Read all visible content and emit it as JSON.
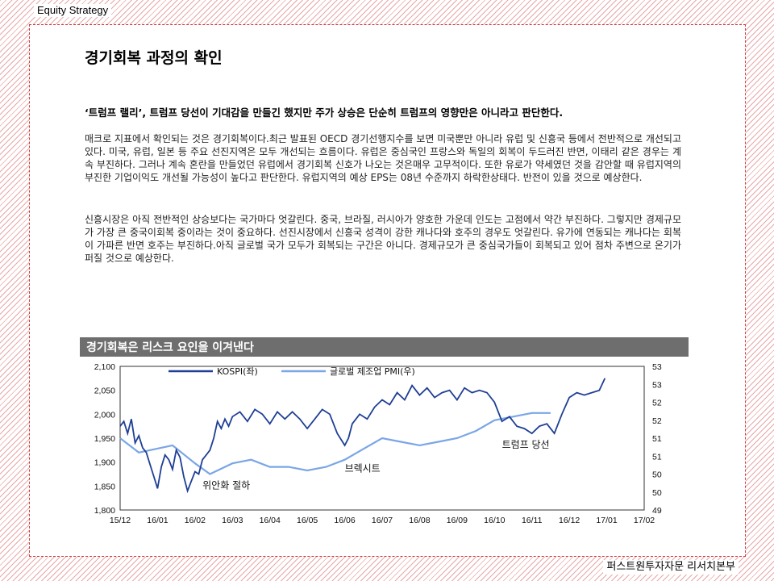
{
  "header": {
    "section_label": "Equity Strategy"
  },
  "page": {
    "title": "경기회복 과정의 확인"
  },
  "lead": "‘트럼프 랠리’, 트럼프 당선이 기대감을 만들긴 했지만 주가 상승은 단순히 트럼프의 영향만은 아니라고 판단한다.",
  "paragraphs": [
    "매크로 지표에서 확인되는 것은 경기회복이다.최근 발표된 OECD 경기선행지수를 보면 미국뿐만 아니라 유럽 및 신흥국 등에서 전반적으로 개선되고 있다. 미국, 유럽, 일본 등 주요 선진지역은 모두 개선되는 흐름이다. 유럽은 중심국인 프랑스와 독일의 회복이 두드러진 반면, 이태리 같은 경우는 계속 부진하다. 그러나 계속 혼란을 만들었던 유럽에서 경기회복 신호가 나오는 것은매우 고무적이다. 또한 유로가 약세였던 것을 감안할 때 유럽지역의 부진한 기업이익도 개선될 가능성이 높다고 판단한다. 유럽지역의 예상 EPS는 08년 수준까지 하락한상태다. 반전이 있을 것으로 예상한다.",
    "신흥시장은 아직 전반적인 상승보다는 국가마다 엇갈린다. 중국, 브라질, 러시아가 양호한 가운데 인도는 고점에서 약간 부진하다. 그렇지만 경제규모가 가장 큰 중국이회복 중이라는 것이 중요하다. 선진시장에서 신흥국 성격이 강한 캐나다와 호주의 경우도 엇갈린다. 유가에 연동되는 캐나다는 회복이 가파른 반면 호주는 부진하다.아직 글로벌 국가 모두가 회복되는 구간은 아니다. 경제규모가 큰 중심국가들이 회복되고 있어 점차 주변으로 온기가 퍼질 것으로 예상한다."
  ],
  "footer": {
    "source_label": "퍼스트원투자자문 리서치본부"
  },
  "colors": {
    "kospi": "#1f3f95",
    "pmi": "#7aa6e6",
    "title_bar": "#6e6e6e",
    "border_stripes": "#e8a7a7"
  },
  "chart_data": {
    "type": "line",
    "title": "경기회복은 리스크 요인을 이겨낸다",
    "x_ticks": [
      "15/12",
      "16/01",
      "16/02",
      "16/03",
      "16/04",
      "16/05",
      "16/06",
      "16/07",
      "16/08",
      "16/09",
      "16/10",
      "16/11",
      "16/12",
      "17/01",
      "17/02"
    ],
    "y_left": {
      "min": 1800,
      "max": 2100,
      "ticks": [
        "1,800",
        "1,850",
        "1,900",
        "1,950",
        "2,000",
        "2,050",
        "2,100"
      ]
    },
    "y_right": {
      "min": 49,
      "max": 53,
      "ticks": [
        "49",
        "50",
        "50",
        "51",
        "51",
        "52",
        "52",
        "53",
        "53"
      ]
    },
    "series": [
      {
        "name": "KOSPI(좌)",
        "axis": "left",
        "x": [
          0,
          0.1,
          0.2,
          0.3,
          0.4,
          0.5,
          0.6,
          0.7,
          0.8,
          0.9,
          1.0,
          1.1,
          1.2,
          1.3,
          1.4,
          1.5,
          1.6,
          1.7,
          1.8,
          1.9,
          2.0,
          2.1,
          2.2,
          2.3,
          2.4,
          2.5,
          2.6,
          2.7,
          2.8,
          2.9,
          3.0,
          3.2,
          3.4,
          3.6,
          3.8,
          4.0,
          4.2,
          4.4,
          4.6,
          4.8,
          5.0,
          5.2,
          5.4,
          5.6,
          5.8,
          6.0,
          6.1,
          6.2,
          6.4,
          6.6,
          6.8,
          7.0,
          7.2,
          7.4,
          7.6,
          7.8,
          8.0,
          8.2,
          8.4,
          8.6,
          8.8,
          9.0,
          9.2,
          9.4,
          9.6,
          9.8,
          10.0,
          10.2,
          10.4,
          10.6,
          10.8,
          11.0,
          11.2,
          11.4,
          11.6,
          11.8,
          12.0,
          12.2,
          12.4,
          12.6,
          12.8,
          12.95
        ],
        "values": [
          1975,
          1985,
          1960,
          1990,
          1940,
          1955,
          1930,
          1920,
          1895,
          1870,
          1845,
          1890,
          1915,
          1905,
          1885,
          1925,
          1910,
          1870,
          1840,
          1860,
          1880,
          1875,
          1905,
          1915,
          1925,
          1950,
          1985,
          1970,
          1990,
          1975,
          1995,
          2005,
          1985,
          2010,
          2000,
          1980,
          2005,
          1990,
          2005,
          1990,
          1970,
          1990,
          2010,
          2000,
          1960,
          1935,
          1950,
          1980,
          2000,
          1990,
          2015,
          2030,
          2020,
          2045,
          2030,
          2060,
          2040,
          2055,
          2035,
          2045,
          2050,
          2030,
          2055,
          2045,
          2050,
          2045,
          2025,
          1985,
          1995,
          1975,
          1970,
          1960,
          1975,
          1980,
          1960,
          2000,
          2035,
          2045,
          2040,
          2045,
          2050,
          2075
        ]
      },
      {
        "name": "글로벌 제조업 PMI(우)",
        "axis": "right",
        "x": [
          0,
          0.5,
          1.4,
          2.0,
          2.4,
          3.0,
          3.5,
          4.0,
          4.5,
          5.0,
          5.5,
          6.0,
          6.5,
          7.0,
          7.5,
          8.0,
          8.5,
          9.0,
          9.5,
          10.0,
          10.5,
          11.0,
          11.5
        ],
        "values": [
          51.0,
          50.6,
          50.8,
          50.3,
          50.0,
          50.3,
          50.4,
          50.2,
          50.2,
          50.1,
          50.2,
          50.4,
          50.7,
          51.0,
          50.9,
          50.8,
          50.9,
          51.0,
          51.2,
          51.5,
          51.6,
          51.7,
          51.7
        ]
      }
    ],
    "annotations": [
      {
        "text": "위안화 절하",
        "x": 2.2,
        "y": 1845
      },
      {
        "text": "브렉시트",
        "x": 6.0,
        "y": 1880
      },
      {
        "text": "트럼프 당선",
        "x": 10.2,
        "y": 1930
      }
    ],
    "legend_position": "top"
  }
}
